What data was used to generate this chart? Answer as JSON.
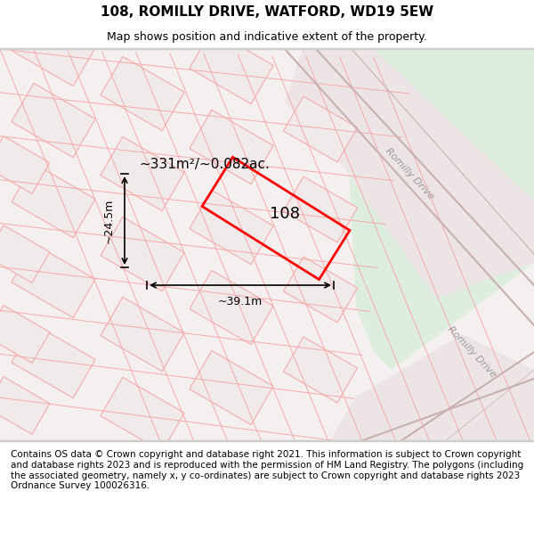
{
  "title": "108, ROMILLY DRIVE, WATFORD, WD19 5EW",
  "subtitle": "Map shows position and indicative extent of the property.",
  "footer": "Contains OS data © Crown copyright and database right 2021. This information is subject to Crown copyright and database rights 2023 and is reproduced with the permission of HM Land Registry. The polygons (including the associated geometry, namely x, y co-ordinates) are subject to Crown copyright and database rights 2023 Ordnance Survey 100026316.",
  "map_bg": "#f5f0f0",
  "road_bg": "#e8e0e0",
  "green_area": "#deeede",
  "plot_color": "#ff0000",
  "dim_color": "#000000",
  "area_text": "~331m²/~0.082ac.",
  "number_text": "108",
  "dim_width": "~39.1m",
  "dim_height": "~24.5m",
  "road_label1": "Romilly Drive",
  "road_label2": "Romilly Drive",
  "title_fontsize": 11,
  "subtitle_fontsize": 9,
  "footer_fontsize": 7.5
}
